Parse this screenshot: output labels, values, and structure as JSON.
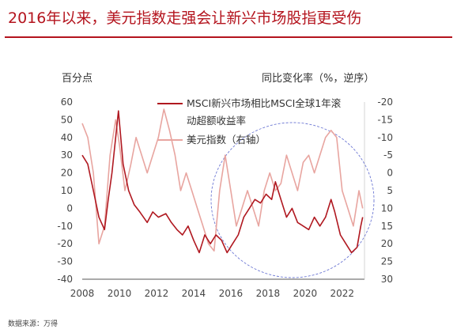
{
  "title": "2016年以来，美元指数走强会让新兴市场股指更受伤",
  "left_unit": "百分点",
  "right_unit": "同比变化率（%，逆序）",
  "source": "数据来源：万得",
  "colors": {
    "title": "#b4141e",
    "series_primary": "#b01820",
    "series_secondary": "#e8a5a0",
    "ellipse": "#6e79d4",
    "axis": "#555555"
  },
  "chart_data": {
    "type": "line",
    "xlim": [
      2008,
      2023.2
    ],
    "x_ticks": [
      "2008",
      "2010",
      "2012",
      "2014",
      "2016",
      "2018",
      "2020",
      "2022"
    ],
    "x_tick_values": [
      2008,
      2010,
      2012,
      2014,
      2016,
      2018,
      2020,
      2022
    ],
    "ylim_left": [
      -40,
      60
    ],
    "y_ticks_left": [
      "60",
      "50",
      "40",
      "30",
      "20",
      "10",
      "0",
      "-10",
      "-20",
      "-30",
      "-40"
    ],
    "ylim_right": [
      -20,
      30
    ],
    "right_axis_inverted": true,
    "y_ticks_right": [
      "-20",
      "-15",
      "-10",
      "-5",
      "0",
      "5",
      "10",
      "15",
      "20",
      "25",
      "30"
    ],
    "legend": [
      {
        "label": "MSCI新兴市场相比MSCI全球1年滚",
        "label_cont": "动超额收益率",
        "color": "#b01820"
      },
      {
        "label": "美元指数（右轴）",
        "color": "#e8a5a0"
      }
    ],
    "series": [
      {
        "name": "MSCI新兴市场相比MSCI全球1年滚动超额收益率",
        "axis": "left",
        "x": [
          2008,
          2008.3,
          2008.6,
          2008.9,
          2009.2,
          2009.4,
          2009.6,
          2009.8,
          2009.95,
          2010.2,
          2010.5,
          2010.8,
          2011.1,
          2011.5,
          2011.8,
          2012.1,
          2012.5,
          2012.8,
          2013.1,
          2013.4,
          2013.7,
          2014.0,
          2014.3,
          2014.6,
          2014.9,
          2015.2,
          2015.5,
          2015.8,
          2016.1,
          2016.4,
          2016.7,
          2017.0,
          2017.3,
          2017.6,
          2017.9,
          2018.2,
          2018.4,
          2018.7,
          2019.0,
          2019.3,
          2019.6,
          2019.9,
          2020.2,
          2020.5,
          2020.8,
          2021.1,
          2021.4,
          2021.6,
          2021.9,
          2022.2,
          2022.5,
          2022.8,
          2023.0,
          2023.1
        ],
        "values": [
          30,
          25,
          10,
          -5,
          -12,
          5,
          20,
          40,
          55,
          25,
          10,
          2,
          -2,
          -8,
          -2,
          -5,
          -3,
          -8,
          -12,
          -15,
          -10,
          -18,
          -25,
          -15,
          -20,
          -15,
          -18,
          -25,
          -20,
          -15,
          -5,
          0,
          5,
          3,
          8,
          5,
          15,
          5,
          -5,
          0,
          -8,
          -10,
          -12,
          -5,
          -10,
          -5,
          5,
          -2,
          -15,
          -20,
          -25,
          -22,
          -10,
          -5
        ]
      },
      {
        "name": "美元指数（右轴）",
        "axis": "right",
        "x": [
          2008,
          2008.3,
          2008.6,
          2008.9,
          2009.2,
          2009.5,
          2009.8,
          2010.0,
          2010.3,
          2010.6,
          2010.9,
          2011.2,
          2011.5,
          2011.8,
          2012.1,
          2012.4,
          2012.7,
          2013.0,
          2013.3,
          2013.6,
          2013.9,
          2014.2,
          2014.5,
          2014.8,
          2015.1,
          2015.4,
          2015.7,
          2016.0,
          2016.3,
          2016.6,
          2016.9,
          2017.2,
          2017.5,
          2017.8,
          2018.1,
          2018.4,
          2018.7,
          2019.0,
          2019.3,
          2019.6,
          2019.9,
          2020.2,
          2020.5,
          2020.8,
          2021.1,
          2021.4,
          2021.7,
          2022.0,
          2022.3,
          2022.6,
          2022.9,
          2023.1
        ],
        "values": [
          -14,
          -10,
          0,
          20,
          15,
          -5,
          -15,
          -8,
          5,
          -2,
          -10,
          -5,
          0,
          -5,
          -10,
          -18,
          -12,
          -5,
          5,
          0,
          5,
          10,
          15,
          20,
          22,
          5,
          -5,
          5,
          15,
          10,
          5,
          10,
          15,
          5,
          0,
          5,
          3,
          -5,
          0,
          5,
          -3,
          -5,
          0,
          -5,
          -10,
          -12,
          -10,
          5,
          10,
          15,
          5,
          10
        ]
      }
    ]
  }
}
